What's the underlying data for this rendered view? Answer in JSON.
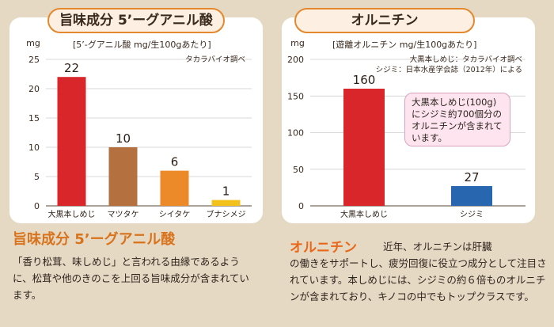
{
  "left_panel": {
    "title": "旨味成分 5’ーグアニル酸",
    "unit": "mg",
    "subtitle": "[5’-グアニル酸 mg/生100gあたり]",
    "source": "タカラバイオ調べ"
  },
  "right_panel": {
    "title": "オルニチン",
    "unit": "mg",
    "subtitle": "[遊離オルニチン mg/生100gあたり]",
    "source_lines": [
      "大黒本しめじ：タカラバイオ調べ",
      "シジミ：日本水産学会誌（2012年）による"
    ],
    "callout": "大黒本しめじ(100g)にシジミ約700個分のオルニチンが含まれています。"
  },
  "captions": {
    "left_heading": "旨味成分 5’ーグアニル酸",
    "left_body": "「香り松茸、味しめじ」と言われる由縁であるように、松茸や他のきのこを上回る旨味成分が含まれています。",
    "right_heading": "オルニチン",
    "right_intro": "近年、オルニチンは肝臓",
    "right_body": "の働きをサポートし、疲労回復に役立つ成分として注目されています。本しめじには、シジミの約６倍ものオルニチンが含まれており、キノコの中でもトップクラスです。"
  },
  "chart_data": [
    {
      "type": "bar",
      "title": "旨味成分 5’ーグアニル酸",
      "subtitle": "[5’-グアニル酸 mg/生100gあたり]",
      "ylabel": "mg",
      "categories": [
        "大黒本しめじ",
        "マツタケ",
        "シイタケ",
        "ブナシメジ"
      ],
      "values": [
        22,
        10,
        6,
        1
      ],
      "colors": [
        "#d8262b",
        "#b4703e",
        "#ec8a2a",
        "#f2c11c"
      ],
      "ylim": [
        0,
        25
      ],
      "yticks": [
        0,
        5,
        10,
        15,
        20,
        25
      ],
      "grid": true
    },
    {
      "type": "bar",
      "title": "オルニチン",
      "subtitle": "[遊離オルニチン mg/生100gあたり]",
      "ylabel": "mg",
      "categories": [
        "大黒本しめじ",
        "シジミ"
      ],
      "values": [
        160,
        27
      ],
      "colors": [
        "#d8262b",
        "#2866b0"
      ],
      "ylim": [
        0,
        200
      ],
      "yticks": [
        0,
        50,
        100,
        150,
        200
      ],
      "grid": true
    }
  ]
}
